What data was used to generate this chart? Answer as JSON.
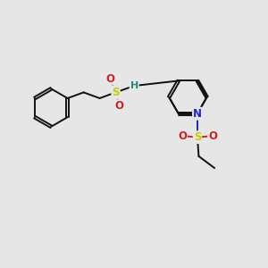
{
  "bg_color": "#e6e6e6",
  "bond_color": "#111111",
  "bond_width": 1.4,
  "atom_colors": {
    "C": "#111111",
    "N": "#2222cc",
    "O": "#cc2222",
    "S": "#cccc00",
    "H": "#228888"
  },
  "font_size": 8.5,
  "doff": 0.055
}
